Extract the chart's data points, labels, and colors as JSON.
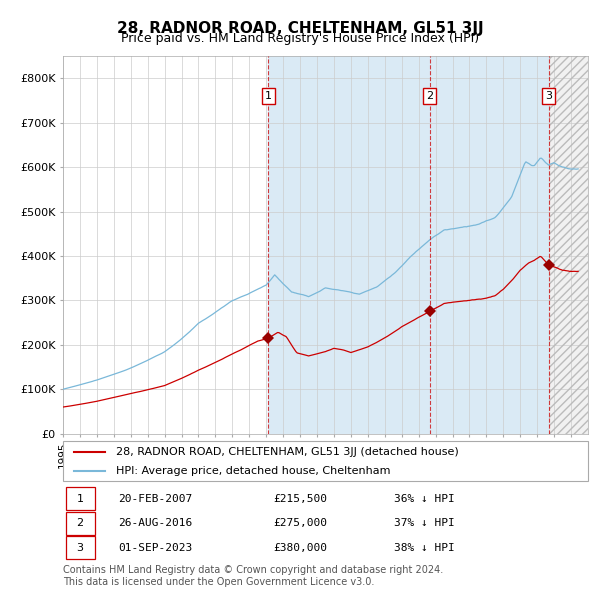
{
  "title": "28, RADNOR ROAD, CHELTENHAM, GL51 3JJ",
  "subtitle": "Price paid vs. HM Land Registry's House Price Index (HPI)",
  "ylim": [
    0,
    850000
  ],
  "yticks": [
    0,
    100000,
    200000,
    300000,
    400000,
    500000,
    600000,
    700000,
    800000
  ],
  "ytick_labels": [
    "£0",
    "£100K",
    "£200K",
    "£300K",
    "£400K",
    "£500K",
    "£600K",
    "£700K",
    "£800K"
  ],
  "hpi_color": "#7ab8d9",
  "price_color": "#cc0000",
  "marker_color": "#990000",
  "grid_color": "#cccccc",
  "shade_color": "#daeaf5",
  "transactions": [
    {
      "label": "1",
      "date_num": 2007.12,
      "price": 215500,
      "date_str": "20-FEB-2007",
      "pct": "36%",
      "dir": "↓"
    },
    {
      "label": "2",
      "date_num": 2016.65,
      "price": 275000,
      "date_str": "26-AUG-2016",
      "pct": "37%",
      "dir": "↓"
    },
    {
      "label": "3",
      "date_num": 2023.67,
      "price": 380000,
      "date_str": "01-SEP-2023",
      "pct": "38%",
      "dir": "↓"
    }
  ],
  "legend_entries": [
    "28, RADNOR ROAD, CHELTENHAM, GL51 3JJ (detached house)",
    "HPI: Average price, detached house, Cheltenham"
  ],
  "footer": "Contains HM Land Registry data © Crown copyright and database right 2024.\nThis data is licensed under the Open Government Licence v3.0.",
  "title_fontsize": 11,
  "subtitle_fontsize": 9,
  "tick_fontsize": 8,
  "legend_fontsize": 8,
  "table_fontsize": 8,
  "footer_fontsize": 7
}
